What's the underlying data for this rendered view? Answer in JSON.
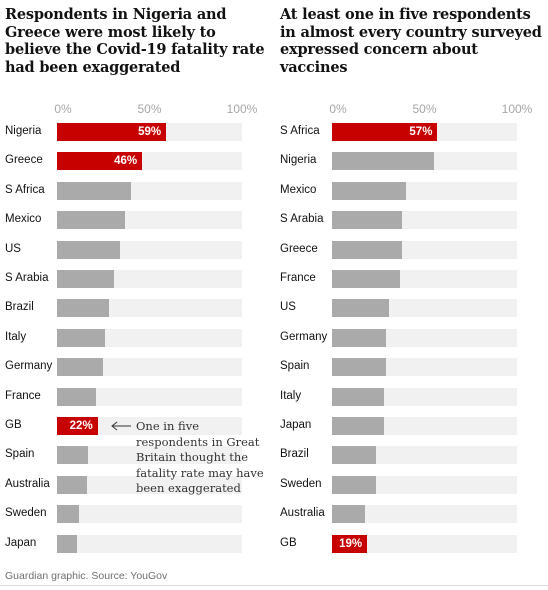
{
  "chart_data": [
    {
      "type": "bar",
      "orientation": "horizontal",
      "title": "Respondents in Nigeria and Greece were most likely to believe the Covid-19 fatality rate had been exaggerated",
      "xlim": [
        0,
        100
      ],
      "ticks": [
        "0%",
        "50%",
        "100%"
      ],
      "categories": [
        "Nigeria",
        "Greece",
        "S Africa",
        "Mexico",
        "US",
        "S Arabia",
        "Brazil",
        "Italy",
        "Germany",
        "France",
        "GB",
        "Spain",
        "Australia",
        "Sweden",
        "Japan"
      ],
      "values": [
        59,
        46,
        40,
        37,
        34,
        31,
        28,
        26,
        25,
        21,
        22,
        17,
        16,
        12,
        11
      ],
      "highlighted": [
        "Nigeria",
        "Greece",
        "GB"
      ],
      "data_labels": {
        "Nigeria": "59%",
        "Greece": "46%",
        "GB": "22%"
      },
      "annotation": "One in five respondents in Great Britain thought the fatality rate may have been exaggerated"
    },
    {
      "type": "bar",
      "orientation": "horizontal",
      "title": "At least one in five respondents in almost every country surveyed expressed concern about vaccines",
      "xlim": [
        0,
        100
      ],
      "ticks": [
        "0%",
        "50%",
        "100%"
      ],
      "categories": [
        "S Africa",
        "Nigeria",
        "Mexico",
        "S Arabia",
        "Greece",
        "France",
        "US",
        "Germany",
        "Spain",
        "Italy",
        "Japan",
        "Brazil",
        "Sweden",
        "Australia",
        "GB"
      ],
      "values": [
        57,
        55,
        40,
        38,
        38,
        37,
        31,
        29,
        29,
        28,
        28,
        24,
        24,
        18,
        19
      ],
      "highlighted": [
        "S Africa",
        "GB"
      ],
      "data_labels": {
        "S Africa": "57%",
        "GB": "19%"
      }
    }
  ],
  "source": "Guardian graphic. Source: YouGov",
  "colors": {
    "highlight": "#c70000",
    "bar": "#aaaaaa",
    "track": "#f1f1f1",
    "tick": "#a7a7a7"
  }
}
